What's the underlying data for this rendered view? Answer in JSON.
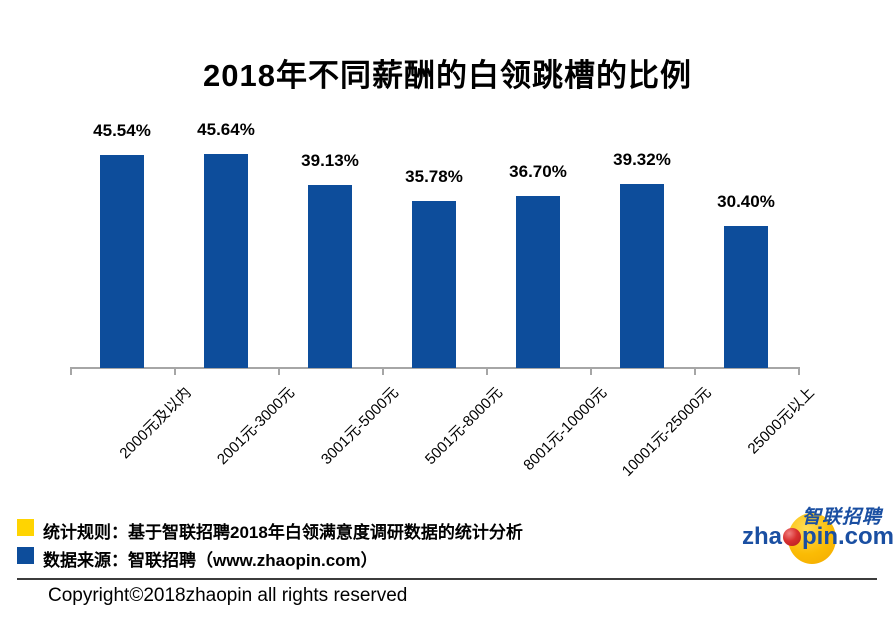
{
  "title": "2018年不同薪酬的白领跳槽的比例",
  "chart_data": {
    "type": "bar",
    "title": "2018年不同薪酬的白领跳槽的比例",
    "categories": [
      "2000元及以内",
      "2001元-3000元",
      "3001元-5000元",
      "5001元-8000元",
      "8001元-10000元",
      "10001元-25000元",
      "25000元以上"
    ],
    "values": [
      45.54,
      45.64,
      39.13,
      35.78,
      36.7,
      39.32,
      30.4
    ],
    "value_labels": [
      "45.54%",
      "45.64%",
      "39.13%",
      "35.78%",
      "36.70%",
      "39.32%",
      "30.40%"
    ],
    "bar_color": "#0d4d9b",
    "axis_color": "#a6a6a6",
    "ylim": [
      0,
      50
    ],
    "grid": false,
    "legend_position": "none",
    "xlabel": "",
    "ylabel": ""
  },
  "legend": {
    "items": [
      {
        "color": "#ffd401",
        "label": "统计规则：基于智联招聘2018年白领满意度调研数据的统计分析"
      },
      {
        "color": "#0d4d9b",
        "label": "数据来源：智联招聘（www.zhaopin.com）"
      }
    ]
  },
  "logo": {
    "cn_text": "智联招聘",
    "domain_prefix": "zha",
    "domain_suffix": "pin.com",
    "colors": {
      "blue": "#1a4fa2",
      "yellow": "#fbbc05",
      "red": "#c9252c"
    }
  },
  "footer": {
    "copyright": "Copyright©2018zhaopin all rights reserved"
  }
}
